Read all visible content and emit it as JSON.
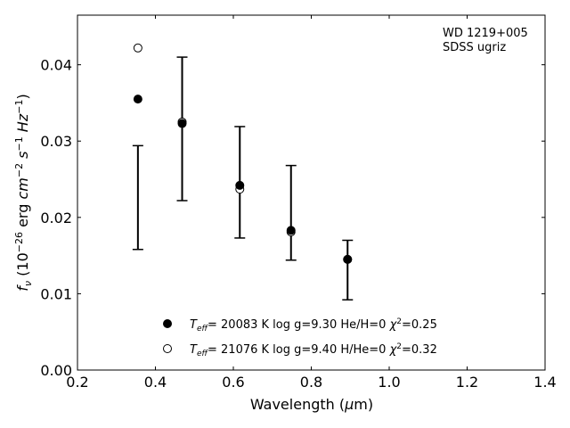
{
  "chart_data": {
    "type": "scatter",
    "title": "",
    "xlabel_prefix": "Wavelength (",
    "xlabel_mu": "μ",
    "xlabel_suffix": "m)",
    "ylabel_f": "f",
    "ylabel_sub": "ν",
    "ylabel_open": " (10",
    "ylabel_exp": "−26",
    "ylabel_erg": " erg ",
    "ylabel_cm": "cm",
    "ylabel_cm_exp": "−2",
    "ylabel_s": " s",
    "ylabel_s_exp": "−1",
    "ylabel_hz": " Hz",
    "ylabel_hz_exp": "−1",
    "ylabel_close": ")",
    "xlim": [
      0.2,
      1.4
    ],
    "ylim": [
      0.0,
      0.0465
    ],
    "xticks": [
      0.2,
      0.4,
      0.6,
      0.8,
      1.0,
      1.2,
      1.4
    ],
    "xtick_labels": [
      "0.2",
      "0.4",
      "0.6",
      "0.8",
      "1.0",
      "1.2",
      "1.4"
    ],
    "yticks": [
      0.0,
      0.01,
      0.02,
      0.03,
      0.04
    ],
    "ytick_labels": [
      "0.00",
      "0.01",
      "0.02",
      "0.03",
      "0.04"
    ],
    "grid": false,
    "annotation": [
      "WD 1219+005",
      "SDSS ugriz"
    ],
    "observed": {
      "x": [
        0.3551,
        0.4686,
        0.6166,
        0.748,
        0.8932
      ],
      "y": [
        0.0226,
        0.0316,
        0.0246,
        0.0206,
        0.0131
      ],
      "yerr": [
        0.0068,
        0.0094,
        0.0073,
        0.0062,
        0.0039
      ]
    },
    "series": [
      {
        "name_T": "T",
        "name_sub": "eff",
        "name_rest": "= 20083 K  log g=9.30  He/H=0  ",
        "name_chi": "χ",
        "name_chi_exp": "2",
        "name_chi_val": "=0.25",
        "marker": "filled",
        "x": [
          0.3551,
          0.4686,
          0.6166,
          0.748,
          0.8932
        ],
        "y": [
          0.0355,
          0.0323,
          0.0242,
          0.0183,
          0.0145
        ]
      },
      {
        "name_T": "T",
        "name_sub": "eff",
        "name_rest": "= 21076 K  log g=9.40  H/He=0  ",
        "name_chi": "χ",
        "name_chi_exp": "2",
        "name_chi_val": "=0.32",
        "marker": "open",
        "x": [
          0.3551,
          0.4686,
          0.6166,
          0.748,
          0.8932
        ],
        "y": [
          0.0422,
          0.0325,
          0.0237,
          0.0181,
          0.0145
        ]
      }
    ],
    "legend": "bottom-center"
  }
}
